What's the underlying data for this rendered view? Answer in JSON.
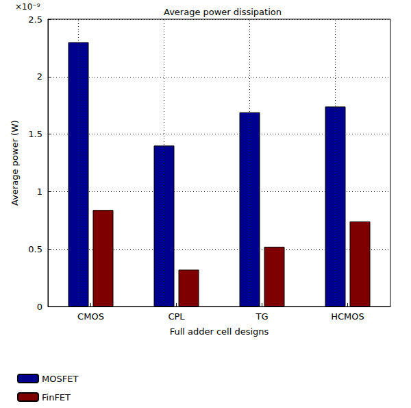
{
  "chart_data": {
    "type": "bar",
    "title": "Average power dissipation",
    "x_label": "Full adder cell designs",
    "y_label": "Average power (W)",
    "annotations": [
      "×10⁻⁹"
    ],
    "categories": [
      "CMOS",
      "CPL",
      "TG",
      "HCMOS"
    ],
    "series": [
      {
        "name": "MOSFET",
        "color": "#00008f",
        "values": [
          2.3,
          1.4,
          1.69,
          1.74
        ]
      },
      {
        "name": "FinFET",
        "color": "#7f0000",
        "values": [
          0.84,
          0.32,
          0.52,
          0.74
        ]
      }
    ],
    "ylim": [
      0,
      2.5
    ],
    "yticks": [
      0,
      0.5,
      1,
      1.5,
      2,
      2.5
    ],
    "grid": true,
    "legend": "bottom-left"
  }
}
